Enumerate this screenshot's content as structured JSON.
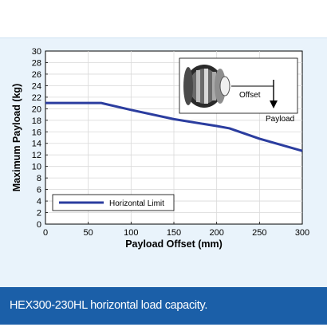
{
  "chart_data": {
    "type": "line",
    "xlabel": "Payload Offset (mm)",
    "ylabel": "Maximum Payload (kg)",
    "xlim": [
      0,
      300
    ],
    "ylim": [
      0,
      30
    ],
    "xticks": [
      0,
      50,
      100,
      150,
      200,
      250,
      300
    ],
    "yticks": [
      0,
      2,
      4,
      6,
      8,
      10,
      12,
      14,
      16,
      18,
      20,
      22,
      24,
      26,
      28,
      30
    ],
    "grid": true,
    "legend_position": "bottom-left",
    "series": [
      {
        "name": "Horizontal Limit",
        "color": "#2b3d9f",
        "x": [
          0,
          65,
          100,
          150,
          200,
          215,
          250,
          300
        ],
        "y": [
          21.0,
          21.0,
          19.8,
          18.2,
          17.0,
          16.6,
          14.8,
          12.7
        ]
      }
    ],
    "inset": {
      "offset_label": "Offset",
      "payload_label": "Payload"
    }
  },
  "caption": {
    "text": "HEX300-230HL horizontal load capacity."
  },
  "colors": {
    "panel_background": "#e9f3fb",
    "caption_background": "#1b5fa8",
    "series_line": "#2b3d9f"
  }
}
